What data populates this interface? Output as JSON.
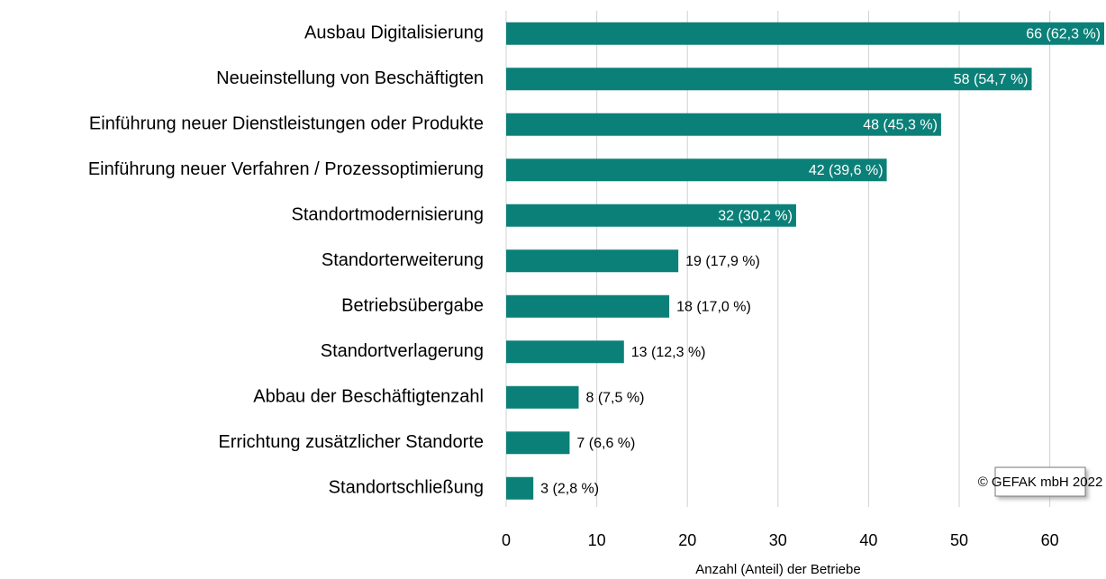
{
  "chart_data": {
    "type": "bar",
    "orientation": "horizontal",
    "categories": [
      "Ausbau Digitalisierung",
      "Neueinstellung von Beschäftigten",
      "Einführung neuer Dienstleistungen oder Produkte",
      "Einführung neuer Verfahren / Prozessoptimierung",
      "Standortmodernisierung",
      "Standorterweiterung",
      "Betriebsübergabe",
      "Standortverlagerung",
      "Abbau der Beschäftigtenzahl",
      "Errichtung zusätzlicher Standorte",
      "Standortschließung"
    ],
    "values": [
      66,
      58,
      48,
      42,
      32,
      19,
      18,
      13,
      8,
      7,
      3
    ],
    "value_labels": [
      "66 (62,3 %)",
      "58 (54,7 %)",
      "48 (45,3 %)",
      "42 (39,6 %)",
      "32 (30,2 %)",
      "19 (17,9 %)",
      "18 (17,0 %)",
      "13 (12,3 %)",
      "8 (7,5 %)",
      "7 (6,6 %)",
      "3 (2,8 %)"
    ],
    "color": "#0b8078",
    "xlabel": "Anzahl (Anteil) der Betriebe",
    "xlim": [
      0,
      66
    ],
    "xticks": [
      0,
      10,
      20,
      30,
      40,
      50,
      60
    ],
    "grid": true,
    "annotation": "© GEFAK mbH 2022"
  }
}
